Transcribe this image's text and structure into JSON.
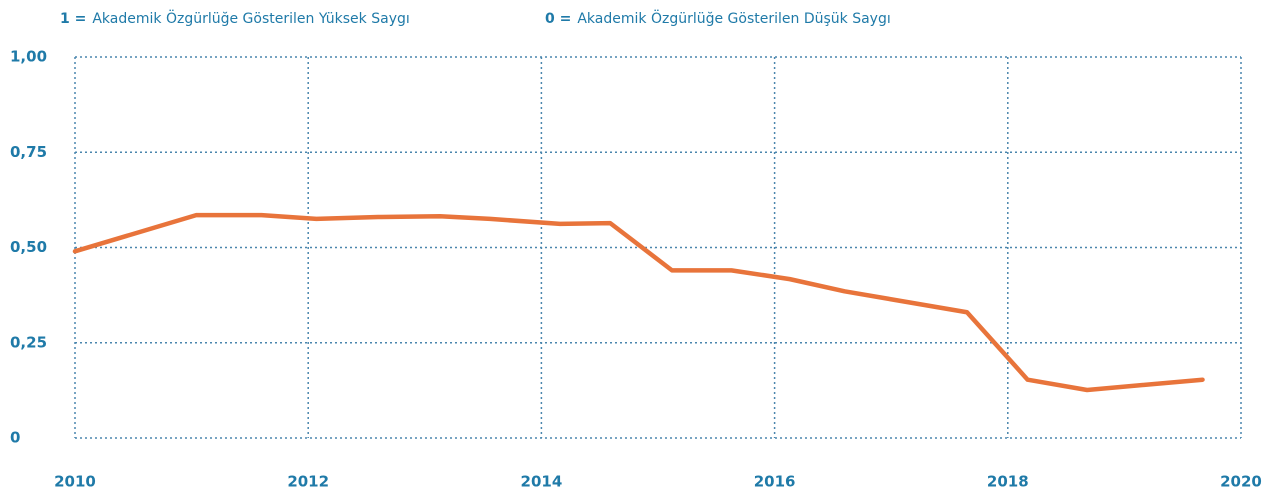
{
  "chart_data": {
    "type": "line",
    "notes": [
      {
        "key": "1 =",
        "text": "Akademik Özgürlüğe Gösterilen Yüksek Saygı"
      },
      {
        "key": "0 =",
        "text": "Akademik Özgürlüğe Gösterilen Düşük Saygı"
      }
    ],
    "x": [
      2010,
      2011.04,
      2011.6,
      2012.07,
      2012.6,
      2013.13,
      2013.56,
      2014.16,
      2014.59,
      2015.12,
      2015.63,
      2016.13,
      2016.6,
      2017.65,
      2018.17,
      2018.68,
      2019.67
    ],
    "series": [
      {
        "color": "#e8743b",
        "values": [
          0.49,
          0.585,
          0.585,
          0.575,
          0.58,
          0.582,
          0.575,
          0.562,
          0.564,
          0.44,
          0.44,
          0.417,
          0.385,
          0.33,
          0.153,
          0.126,
          0.153
        ]
      }
    ],
    "xlim": [
      2010,
      2020
    ],
    "xticks": [
      2010,
      2012,
      2014,
      2016,
      2018,
      2020
    ],
    "ylim": [
      0,
      1
    ],
    "yticks": [
      0,
      {
        "value": 0.25,
        "label": "0,25"
      },
      {
        "value": 0.5,
        "label": "0,50"
      },
      {
        "value": 0.75,
        "label": "0,75"
      },
      {
        "value": 1,
        "label": "1,00"
      }
    ],
    "grid": true
  }
}
